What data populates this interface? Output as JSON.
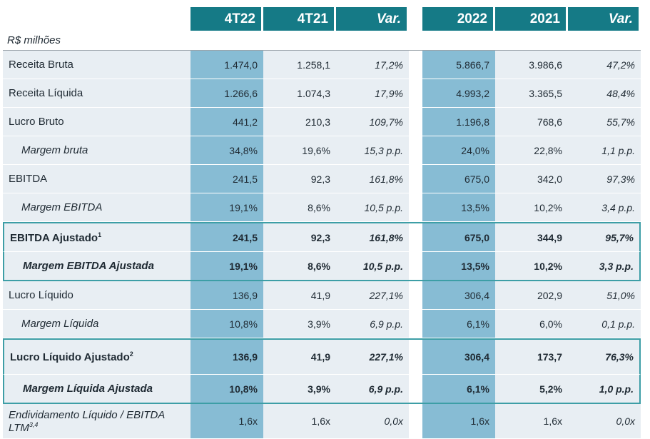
{
  "table": {
    "headers": [
      "4T22",
      "4T21",
      "Var.",
      "2022",
      "2021",
      "Var."
    ],
    "unit": "R$ milhões",
    "rows": [
      {
        "label": "Receita Bruta",
        "values": [
          "1.474,0",
          "1.258,1",
          "17,2%",
          "5.866,7",
          "3.986,6",
          "47,2%"
        ]
      },
      {
        "label": "Receita Líquida",
        "values": [
          "1.266,6",
          "1.074,3",
          "17,9%",
          "4.993,2",
          "3.365,5",
          "48,4%"
        ]
      },
      {
        "label": "Lucro Bruto",
        "values": [
          "441,2",
          "210,3",
          "109,7%",
          "1.196,8",
          "768,6",
          "55,7%"
        ]
      },
      {
        "label": "Margem bruta",
        "values": [
          "34,8%",
          "19,6%",
          "15,3 p.p.",
          "24,0%",
          "22,8%",
          "1,1 p.p."
        ]
      },
      {
        "label": "EBITDA",
        "values": [
          "241,5",
          "92,3",
          "161,8%",
          "675,0",
          "342,0",
          "97,3%"
        ]
      },
      {
        "label": "Margem EBITDA",
        "values": [
          "19,1%",
          "8,6%",
          "10,5 p.p.",
          "13,5%",
          "10,2%",
          "3,4 p.p."
        ]
      },
      {
        "label": "EBITDA Ajustado",
        "sup": "1",
        "values": [
          "241,5",
          "92,3",
          "161,8%",
          "675,0",
          "344,9",
          "95,7%"
        ]
      },
      {
        "label": "Margem EBITDA Ajustada",
        "values": [
          "19,1%",
          "8,6%",
          "10,5 p.p.",
          "13,5%",
          "10,2%",
          "3,3 p.p."
        ]
      },
      {
        "label": "Lucro Líquido",
        "values": [
          "136,9",
          "41,9",
          "227,1%",
          "306,4",
          "202,9",
          "51,0%"
        ]
      },
      {
        "label": "Margem Líquida",
        "values": [
          "10,8%",
          "3,9%",
          "6,9 p.p.",
          "6,1%",
          "6,0%",
          "0,1 p.p."
        ]
      },
      {
        "label": "Lucro Líquido Ajustado",
        "sup": "2",
        "values": [
          "136,9",
          "41,9",
          "227,1%",
          "306,4",
          "173,7",
          "76,3%"
        ]
      },
      {
        "label": "Margem Líquida Ajustada",
        "values": [
          "10,8%",
          "3,9%",
          "6,9 p.p.",
          "6,1%",
          "5,2%",
          "1,0 p.p."
        ]
      },
      {
        "label": "Endividamento Líquido / EBITDA LTM",
        "sup": "3,4",
        "values": [
          "1,6x",
          "1,6x",
          "0,0x",
          "1,6x",
          "1,6x",
          "0,0x"
        ]
      }
    ]
  },
  "colors": {
    "header": "#157a86",
    "highlight": "#87bcd4",
    "row_bg": "#e8eef3",
    "box": "#3d9ea6"
  }
}
